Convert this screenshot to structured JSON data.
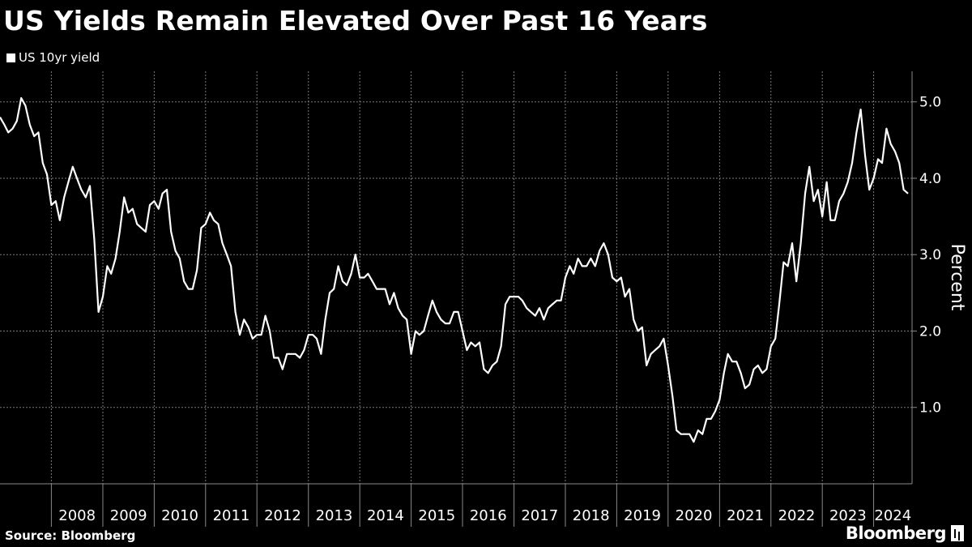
{
  "chart_data": {
    "type": "line",
    "title": "US Yields Remain Elevated Over Past 16 Years",
    "ylabel": "Percent",
    "ylim": [
      0.0,
      5.4
    ],
    "yticks": [
      "1.0",
      "2.0",
      "3.0",
      "4.0",
      "5.0"
    ],
    "xlim": [
      "2007-01-01",
      "2024-09-30"
    ],
    "x_tick_labels": [
      "2008",
      "2009",
      "2010",
      "2011",
      "2012",
      "2013",
      "2014",
      "2015",
      "2016",
      "2017",
      "2018",
      "2019",
      "2020",
      "2021",
      "2022",
      "2023",
      "2024"
    ],
    "grid": true,
    "legend_position": "top-left",
    "series": [
      {
        "name": "US 10yr yield",
        "color": "#ffffff",
        "x": [
          "2007-01-01",
          "2007-02-01",
          "2007-03-01",
          "2007-04-01",
          "2007-05-01",
          "2007-06-01",
          "2007-07-01",
          "2007-08-01",
          "2007-09-01",
          "2007-10-01",
          "2007-11-01",
          "2007-12-01",
          "2008-01-01",
          "2008-02-01",
          "2008-03-01",
          "2008-04-01",
          "2008-05-01",
          "2008-06-01",
          "2008-07-01",
          "2008-08-01",
          "2008-09-01",
          "2008-10-01",
          "2008-11-01",
          "2008-12-01",
          "2009-01-01",
          "2009-02-01",
          "2009-03-01",
          "2009-04-01",
          "2009-05-01",
          "2009-06-01",
          "2009-07-01",
          "2009-08-01",
          "2009-09-01",
          "2009-10-01",
          "2009-11-01",
          "2009-12-01",
          "2010-01-01",
          "2010-02-01",
          "2010-03-01",
          "2010-04-01",
          "2010-05-01",
          "2010-06-01",
          "2010-07-01",
          "2010-08-01",
          "2010-09-01",
          "2010-10-01",
          "2010-11-01",
          "2010-12-01",
          "2011-01-01",
          "2011-02-01",
          "2011-03-01",
          "2011-04-01",
          "2011-05-01",
          "2011-06-01",
          "2011-07-01",
          "2011-08-01",
          "2011-09-01",
          "2011-10-01",
          "2011-11-01",
          "2011-12-01",
          "2012-01-01",
          "2012-02-01",
          "2012-03-01",
          "2012-04-01",
          "2012-05-01",
          "2012-06-01",
          "2012-07-01",
          "2012-08-01",
          "2012-09-01",
          "2012-10-01",
          "2012-11-01",
          "2012-12-01",
          "2013-01-01",
          "2013-02-01",
          "2013-03-01",
          "2013-04-01",
          "2013-05-01",
          "2013-06-01",
          "2013-07-01",
          "2013-08-01",
          "2013-09-01",
          "2013-10-01",
          "2013-11-01",
          "2013-12-01",
          "2014-01-01",
          "2014-02-01",
          "2014-03-01",
          "2014-04-01",
          "2014-05-01",
          "2014-06-01",
          "2014-07-01",
          "2014-08-01",
          "2014-09-01",
          "2014-10-01",
          "2014-11-01",
          "2014-12-01",
          "2015-01-01",
          "2015-02-01",
          "2015-03-01",
          "2015-04-01",
          "2015-05-01",
          "2015-06-01",
          "2015-07-01",
          "2015-08-01",
          "2015-09-01",
          "2015-10-01",
          "2015-11-01",
          "2015-12-01",
          "2016-01-01",
          "2016-02-01",
          "2016-03-01",
          "2016-04-01",
          "2016-05-01",
          "2016-06-01",
          "2016-07-01",
          "2016-08-01",
          "2016-09-01",
          "2016-10-01",
          "2016-11-01",
          "2016-12-01",
          "2017-01-01",
          "2017-02-01",
          "2017-03-01",
          "2017-04-01",
          "2017-05-01",
          "2017-06-01",
          "2017-07-01",
          "2017-08-01",
          "2017-09-01",
          "2017-10-01",
          "2017-11-01",
          "2017-12-01",
          "2018-01-01",
          "2018-02-01",
          "2018-03-01",
          "2018-04-01",
          "2018-05-01",
          "2018-06-01",
          "2018-07-01",
          "2018-08-01",
          "2018-09-01",
          "2018-10-01",
          "2018-11-01",
          "2018-12-01",
          "2019-01-01",
          "2019-02-01",
          "2019-03-01",
          "2019-04-01",
          "2019-05-01",
          "2019-06-01",
          "2019-07-01",
          "2019-08-01",
          "2019-09-01",
          "2019-10-01",
          "2019-11-01",
          "2019-12-01",
          "2020-01-01",
          "2020-02-01",
          "2020-03-01",
          "2020-04-01",
          "2020-05-01",
          "2020-06-01",
          "2020-07-01",
          "2020-08-01",
          "2020-09-01",
          "2020-10-01",
          "2020-11-01",
          "2020-12-01",
          "2021-01-01",
          "2021-02-01",
          "2021-03-01",
          "2021-04-01",
          "2021-05-01",
          "2021-06-01",
          "2021-07-01",
          "2021-08-01",
          "2021-09-01",
          "2021-10-01",
          "2021-11-01",
          "2021-12-01",
          "2022-01-01",
          "2022-02-01",
          "2022-03-01",
          "2022-04-01",
          "2022-05-01",
          "2022-06-01",
          "2022-07-01",
          "2022-08-01",
          "2022-09-01",
          "2022-10-01",
          "2022-11-01",
          "2022-12-01",
          "2023-01-01",
          "2023-02-01",
          "2023-03-01",
          "2023-04-01",
          "2023-05-01",
          "2023-06-01",
          "2023-07-01",
          "2023-08-01",
          "2023-09-01",
          "2023-10-01",
          "2023-11-01",
          "2023-12-01",
          "2024-01-01",
          "2024-02-01",
          "2024-03-01",
          "2024-04-01",
          "2024-05-01",
          "2024-06-01",
          "2024-07-01",
          "2024-08-01",
          "2024-09-01"
        ],
        "y": [
          4.8,
          4.7,
          4.6,
          4.65,
          4.75,
          5.05,
          4.95,
          4.7,
          4.55,
          4.6,
          4.2,
          4.05,
          3.65,
          3.7,
          3.45,
          3.75,
          3.95,
          4.15,
          4.0,
          3.85,
          3.75,
          3.9,
          3.2,
          2.25,
          2.45,
          2.85,
          2.75,
          2.95,
          3.3,
          3.75,
          3.55,
          3.6,
          3.4,
          3.35,
          3.3,
          3.65,
          3.7,
          3.6,
          3.8,
          3.85,
          3.3,
          3.05,
          2.95,
          2.65,
          2.55,
          2.55,
          2.8,
          3.35,
          3.4,
          3.55,
          3.45,
          3.4,
          3.15,
          3.0,
          2.85,
          2.25,
          1.95,
          2.15,
          2.05,
          1.9,
          1.95,
          1.95,
          2.2,
          2.0,
          1.65,
          1.65,
          1.5,
          1.7,
          1.7,
          1.7,
          1.65,
          1.75,
          1.95,
          1.95,
          1.9,
          1.7,
          2.15,
          2.5,
          2.55,
          2.85,
          2.65,
          2.6,
          2.75,
          3.0,
          2.7,
          2.7,
          2.75,
          2.65,
          2.55,
          2.55,
          2.55,
          2.35,
          2.5,
          2.3,
          2.2,
          2.15,
          1.7,
          2.0,
          1.95,
          2.0,
          2.2,
          2.4,
          2.25,
          2.15,
          2.1,
          2.1,
          2.25,
          2.25,
          2.0,
          1.75,
          1.85,
          1.8,
          1.85,
          1.5,
          1.45,
          1.55,
          1.6,
          1.8,
          2.35,
          2.45,
          2.45,
          2.45,
          2.4,
          2.3,
          2.25,
          2.2,
          2.3,
          2.15,
          2.3,
          2.35,
          2.4,
          2.4,
          2.7,
          2.85,
          2.75,
          2.95,
          2.85,
          2.85,
          2.95,
          2.85,
          3.05,
          3.15,
          3.0,
          2.7,
          2.65,
          2.7,
          2.45,
          2.55,
          2.15,
          2.0,
          2.05,
          1.55,
          1.7,
          1.75,
          1.8,
          1.9,
          1.55,
          1.15,
          0.7,
          0.65,
          0.65,
          0.65,
          0.55,
          0.7,
          0.65,
          0.85,
          0.85,
          0.95,
          1.1,
          1.45,
          1.7,
          1.6,
          1.6,
          1.45,
          1.25,
          1.3,
          1.5,
          1.55,
          1.45,
          1.5,
          1.8,
          1.9,
          2.35,
          2.9,
          2.85,
          3.15,
          2.65,
          3.15,
          3.8,
          4.15,
          3.7,
          3.85,
          3.5,
          3.95,
          3.45,
          3.45,
          3.7,
          3.8,
          3.95,
          4.2,
          4.6,
          4.9,
          4.3,
          3.85,
          4.0,
          4.25,
          4.2,
          4.65,
          4.45,
          4.35,
          4.2,
          3.85,
          3.8
        ]
      }
    ]
  },
  "footer": {
    "source": "Source: Bloomberg",
    "brand": "Bloomberg"
  }
}
